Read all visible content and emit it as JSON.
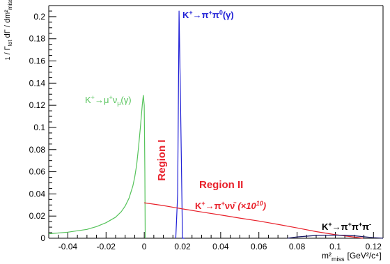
{
  "chart_data": {
    "type": "line",
    "xlabel": "m²miss [GeV²/c⁴]",
    "ylabel": "1/Γtot dΓ/dm²miss",
    "xlim": [
      -0.05,
      0.125
    ],
    "ylim": [
      0,
      0.21
    ],
    "x_ticks": [
      -0.04,
      -0.02,
      0,
      0.02,
      0.04,
      0.06,
      0.08,
      0.1,
      0.12
    ],
    "x_tick_labels": [
      "-0.04",
      "-0.02",
      "0",
      "0.02",
      "0.04",
      "0.06",
      "0.08",
      "0.1",
      "0.12"
    ],
    "y_ticks": [
      0,
      0.02,
      0.04,
      0.06,
      0.08,
      0.1,
      0.12,
      0.14,
      0.16,
      0.18,
      0.2
    ],
    "y_tick_labels": [
      "0",
      "0.02",
      "0.04",
      "0.06",
      "0.08",
      "0.1",
      "0.12",
      "0.14",
      "0.16",
      "0.18",
      "0.2"
    ],
    "grid": false,
    "series": [
      {
        "name": "K+→μ+νμ(γ)",
        "color": "#55c35a",
        "points": [
          [
            -0.05,
            0.004
          ],
          [
            -0.04,
            0.0055
          ],
          [
            -0.03,
            0.008
          ],
          [
            -0.025,
            0.0105
          ],
          [
            -0.02,
            0.014
          ],
          [
            -0.015,
            0.019
          ],
          [
            -0.012,
            0.024
          ],
          [
            -0.01,
            0.029
          ],
          [
            -0.008,
            0.036
          ],
          [
            -0.006,
            0.047
          ],
          [
            -0.005,
            0.055
          ],
          [
            -0.004,
            0.066
          ],
          [
            -0.003,
            0.082
          ],
          [
            -0.002,
            0.101
          ],
          [
            -0.001,
            0.121
          ],
          [
            -0.0005,
            0.129
          ],
          [
            0.0,
            0.12
          ],
          [
            0.0003,
            0.06
          ],
          [
            0.0005,
            0.0
          ]
        ]
      },
      {
        "name": "K+→π+π0(γ)",
        "color": "#1f1fd6",
        "points": [
          [
            0.0165,
            0.0
          ],
          [
            0.0175,
            0.04
          ],
          [
            0.0182,
            0.205
          ],
          [
            0.019,
            0.12
          ],
          [
            0.02,
            0.0
          ],
          [
            0.021,
            0.0
          ]
        ]
      },
      {
        "name": "K+→π+νν̄ (×10¹⁰)",
        "color": "#e8202a",
        "points": [
          [
            0.0,
            0.032
          ],
          [
            0.01,
            0.0295
          ],
          [
            0.02,
            0.0265
          ],
          [
            0.03,
            0.0237
          ],
          [
            0.04,
            0.021
          ],
          [
            0.05,
            0.0182
          ],
          [
            0.06,
            0.0155
          ],
          [
            0.07,
            0.0125
          ],
          [
            0.08,
            0.0093
          ],
          [
            0.09,
            0.006
          ],
          [
            0.1,
            0.0032
          ],
          [
            0.11,
            0.001
          ],
          [
            0.1145,
            0.0
          ]
        ]
      },
      {
        "name": "K+→π+π+π-",
        "color": "#1a1a66",
        "points": [
          [
            0.075,
            0.0
          ],
          [
            0.08,
            0.0012
          ],
          [
            0.09,
            0.0025
          ],
          [
            0.1,
            0.0028
          ],
          [
            0.11,
            0.0022
          ],
          [
            0.12,
            0.0005
          ],
          [
            0.125,
            0.0
          ]
        ]
      }
    ],
    "annotations": [
      {
        "text": "K+→π+π0(γ)",
        "color": "#1f1fd6"
      },
      {
        "text": "K+→μ+νμ(γ)",
        "color": "#55c35a"
      },
      {
        "text": "Region I",
        "color": "#e8202a"
      },
      {
        "text": "Region II",
        "color": "#e8202a"
      },
      {
        "text": "K+→π+νν̄ (×10¹⁰)",
        "color": "#e8202a"
      },
      {
        "text": "K+→π+π+π-",
        "color": "#000000"
      }
    ]
  }
}
